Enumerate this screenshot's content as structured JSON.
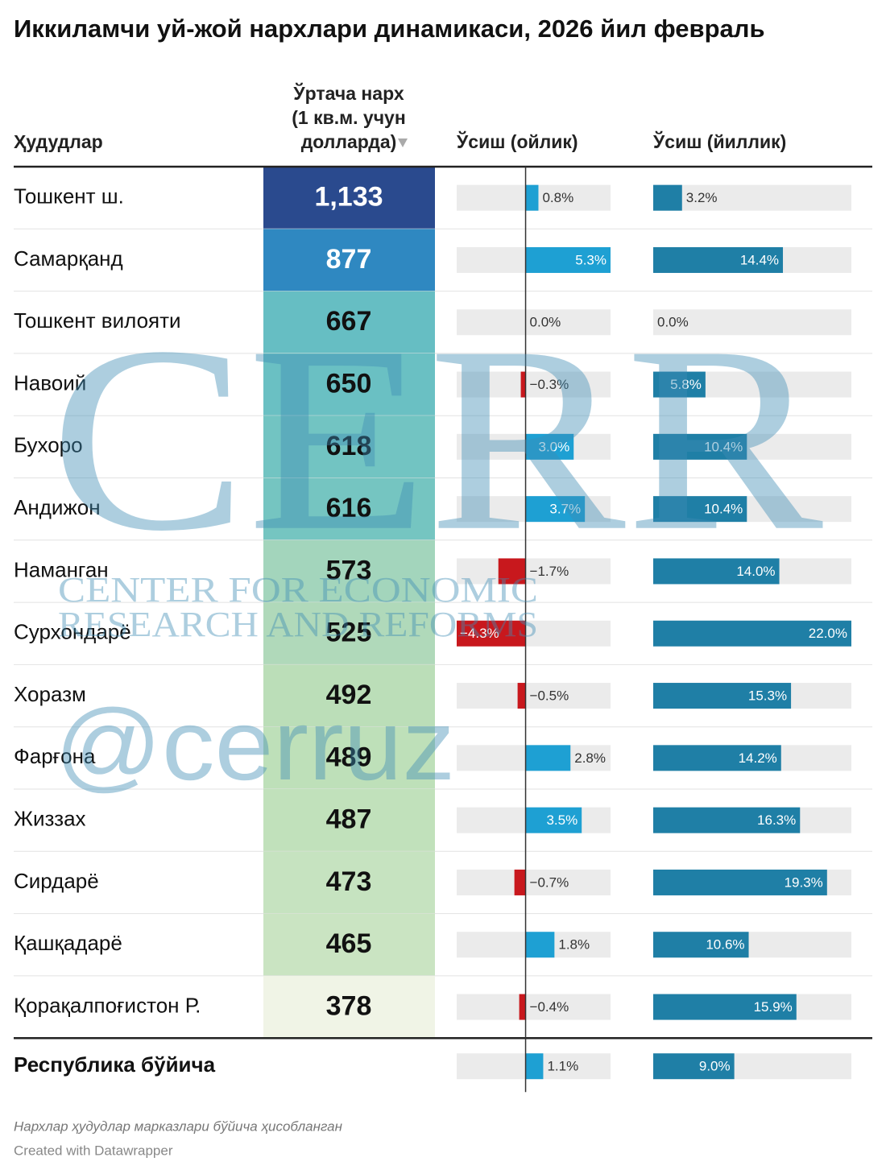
{
  "title": "Иккиламчи уй-жой нархлари динамикаси, 2026 йил февраль",
  "columns": {
    "region": "Ҳудудлар",
    "price": [
      "Ўртача нарх",
      "(1 кв.м. учун",
      "долларда)"
    ],
    "monthly": "Ўсиш (ойлик)",
    "yearly": "Ўсиш (йиллик)"
  },
  "colors": {
    "positive_monthly": "#1ea0d3",
    "negative_monthly": "#c8181d",
    "yearly": "#1f7fa6",
    "track": "#ebebeb"
  },
  "rows": [
    {
      "region": "Тошкент ш.",
      "price": {
        "value": 1133,
        "label": "1,133"
      },
      "cell_color": "#2a4a8e",
      "monthly": {
        "value": 0.8,
        "label": "0.8%"
      },
      "yearly": {
        "value": 3.2,
        "label": "3.2%"
      }
    },
    {
      "region": "Самарқанд",
      "price": 877,
      "cell_color": "#2f88c1",
      "monthly": {
        "value": 5.3,
        "label": "5.3%"
      },
      "yearly": {
        "value": 14.4,
        "label": "14.4%"
      }
    },
    {
      "region": "Тошкент вилояти",
      "price": 667,
      "cell_color": "#66bec3",
      "monthly": {
        "value": 0.0,
        "label": "0.0%"
      },
      "yearly": {
        "value": 0.0,
        "label": "0.0%"
      }
    },
    {
      "region": "Навоий",
      "price": 650,
      "cell_color": "#6ac0c3",
      "monthly": {
        "value": -0.3,
        "label": "−0.3%"
      },
      "yearly": {
        "value": 5.8,
        "label": "5.8%"
      }
    },
    {
      "region": "Бухоро",
      "price": 618,
      "cell_color": "#72c4c2",
      "monthly": {
        "value": 3.0,
        "label": "3.0%"
      },
      "yearly": {
        "value": 10.4,
        "label": "10.4%"
      }
    },
    {
      "region": "Андижон",
      "price": 616,
      "cell_color": "#75c5c1",
      "monthly": {
        "value": 3.7,
        "label": "3.7%"
      },
      "yearly": {
        "value": 10.4,
        "label": "10.4%"
      }
    },
    {
      "region": "Наманган",
      "price": 573,
      "cell_color": "#a3d5bc",
      "monthly": {
        "value": -1.7,
        "label": "−1.7%"
      },
      "yearly": {
        "value": 14.0,
        "label": "14.0%"
      }
    },
    {
      "region": "Сурхондарё",
      "price": 525,
      "cell_color": "#b0d9ba",
      "monthly": {
        "value": -4.3,
        "label": "−4.3%"
      },
      "yearly": {
        "value": 22.0,
        "label": "22.0%"
      }
    },
    {
      "region": "Хоразм",
      "price": 492,
      "cell_color": "#bbdeb8",
      "monthly": {
        "value": -0.5,
        "label": "−0.5%"
      },
      "yearly": {
        "value": 15.3,
        "label": "15.3%"
      }
    },
    {
      "region": "Фарғона",
      "price": 489,
      "cell_color": "#bee0b9",
      "monthly": {
        "value": 2.8,
        "label": "2.8%"
      },
      "yearly": {
        "value": 14.2,
        "label": "14.2%"
      }
    },
    {
      "region": "Жиззах",
      "price": 487,
      "cell_color": "#c1e1bb",
      "monthly": {
        "value": 3.5,
        "label": "3.5%"
      },
      "yearly": {
        "value": 16.3,
        "label": "16.3%"
      }
    },
    {
      "region": "Сирдарё",
      "price": 473,
      "cell_color": "#c6e3c0",
      "monthly": {
        "value": -0.7,
        "label": "−0.7%"
      },
      "yearly": {
        "value": 19.3,
        "label": "19.3%"
      }
    },
    {
      "region": "Қашқадарё",
      "price": 465,
      "cell_color": "#cae4c2",
      "monthly": {
        "value": 1.8,
        "label": "1.8%"
      },
      "yearly": {
        "value": 10.6,
        "label": "10.6%"
      }
    },
    {
      "region": "Қорақалпоғистон Р.",
      "price": 378,
      "cell_color": "#f0f4e6",
      "monthly": {
        "value": -0.4,
        "label": "−0.4%"
      },
      "yearly": {
        "value": 15.9,
        "label": "15.9%"
      }
    }
  ],
  "total": {
    "region": "Республика бўйича",
    "monthly": {
      "value": 1.1,
      "label": "1.1%"
    },
    "yearly": {
      "value": 9.0,
      "label": "9.0%"
    }
  },
  "notes": [
    "Нархлар ҳудудлар марказлари бўйича ҳисобланган",
    "Created with Datawrapper"
  ],
  "watermark": {
    "logo": "CERR",
    "line1": "CENTER FOR ECONOMIC",
    "line2": "RESEARCH AND REFORMS",
    "handle": "@cerruz"
  }
}
